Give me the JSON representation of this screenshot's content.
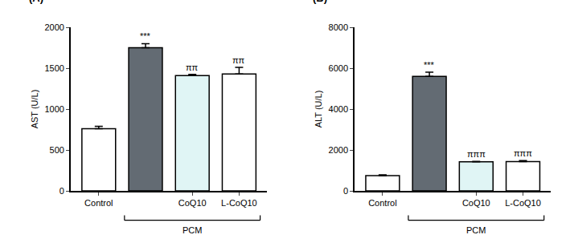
{
  "chart_data": [
    {
      "type": "bar",
      "title": "(A)",
      "y_label": "AST (U/L)",
      "categories": [
        "Control",
        null,
        "CoQ10",
        "L-CoQ10"
      ],
      "values": [
        760,
        1750,
        1410,
        1430
      ],
      "errors": [
        30,
        50,
        15,
        80
      ],
      "colors": [
        "#ffffff",
        "#636b73",
        "#e0f5f5",
        "#ffffff"
      ],
      "ylim": [
        0,
        2000
      ],
      "yticks": [
        0,
        500,
        1000,
        1500,
        2000
      ],
      "grid": false,
      "annotations": [
        {
          "index": 1,
          "text": "***"
        },
        {
          "index": 2,
          "text": "ππ"
        },
        {
          "index": 3,
          "text": "ππ"
        }
      ],
      "group_label": {
        "text": "PCM",
        "from": 1,
        "to": 3
      }
    },
    {
      "type": "bar",
      "title": "(B)",
      "y_label": "ALT (U/L)",
      "categories": [
        "Control",
        null,
        "CoQ10",
        "L-CoQ10"
      ],
      "values": [
        750,
        5600,
        1420,
        1430
      ],
      "errors": [
        30,
        200,
        20,
        50
      ],
      "colors": [
        "#ffffff",
        "#636b73",
        "#e0f5f5",
        "#ffffff"
      ],
      "ylim": [
        0,
        8000
      ],
      "yticks": [
        0,
        2000,
        4000,
        6000,
        8000
      ],
      "grid": false,
      "annotations": [
        {
          "index": 1,
          "text": "***"
        },
        {
          "index": 2,
          "text": "πππ"
        },
        {
          "index": 3,
          "text": "πππ"
        }
      ],
      "group_label": {
        "text": "PCM",
        "from": 1,
        "to": 3
      }
    }
  ]
}
